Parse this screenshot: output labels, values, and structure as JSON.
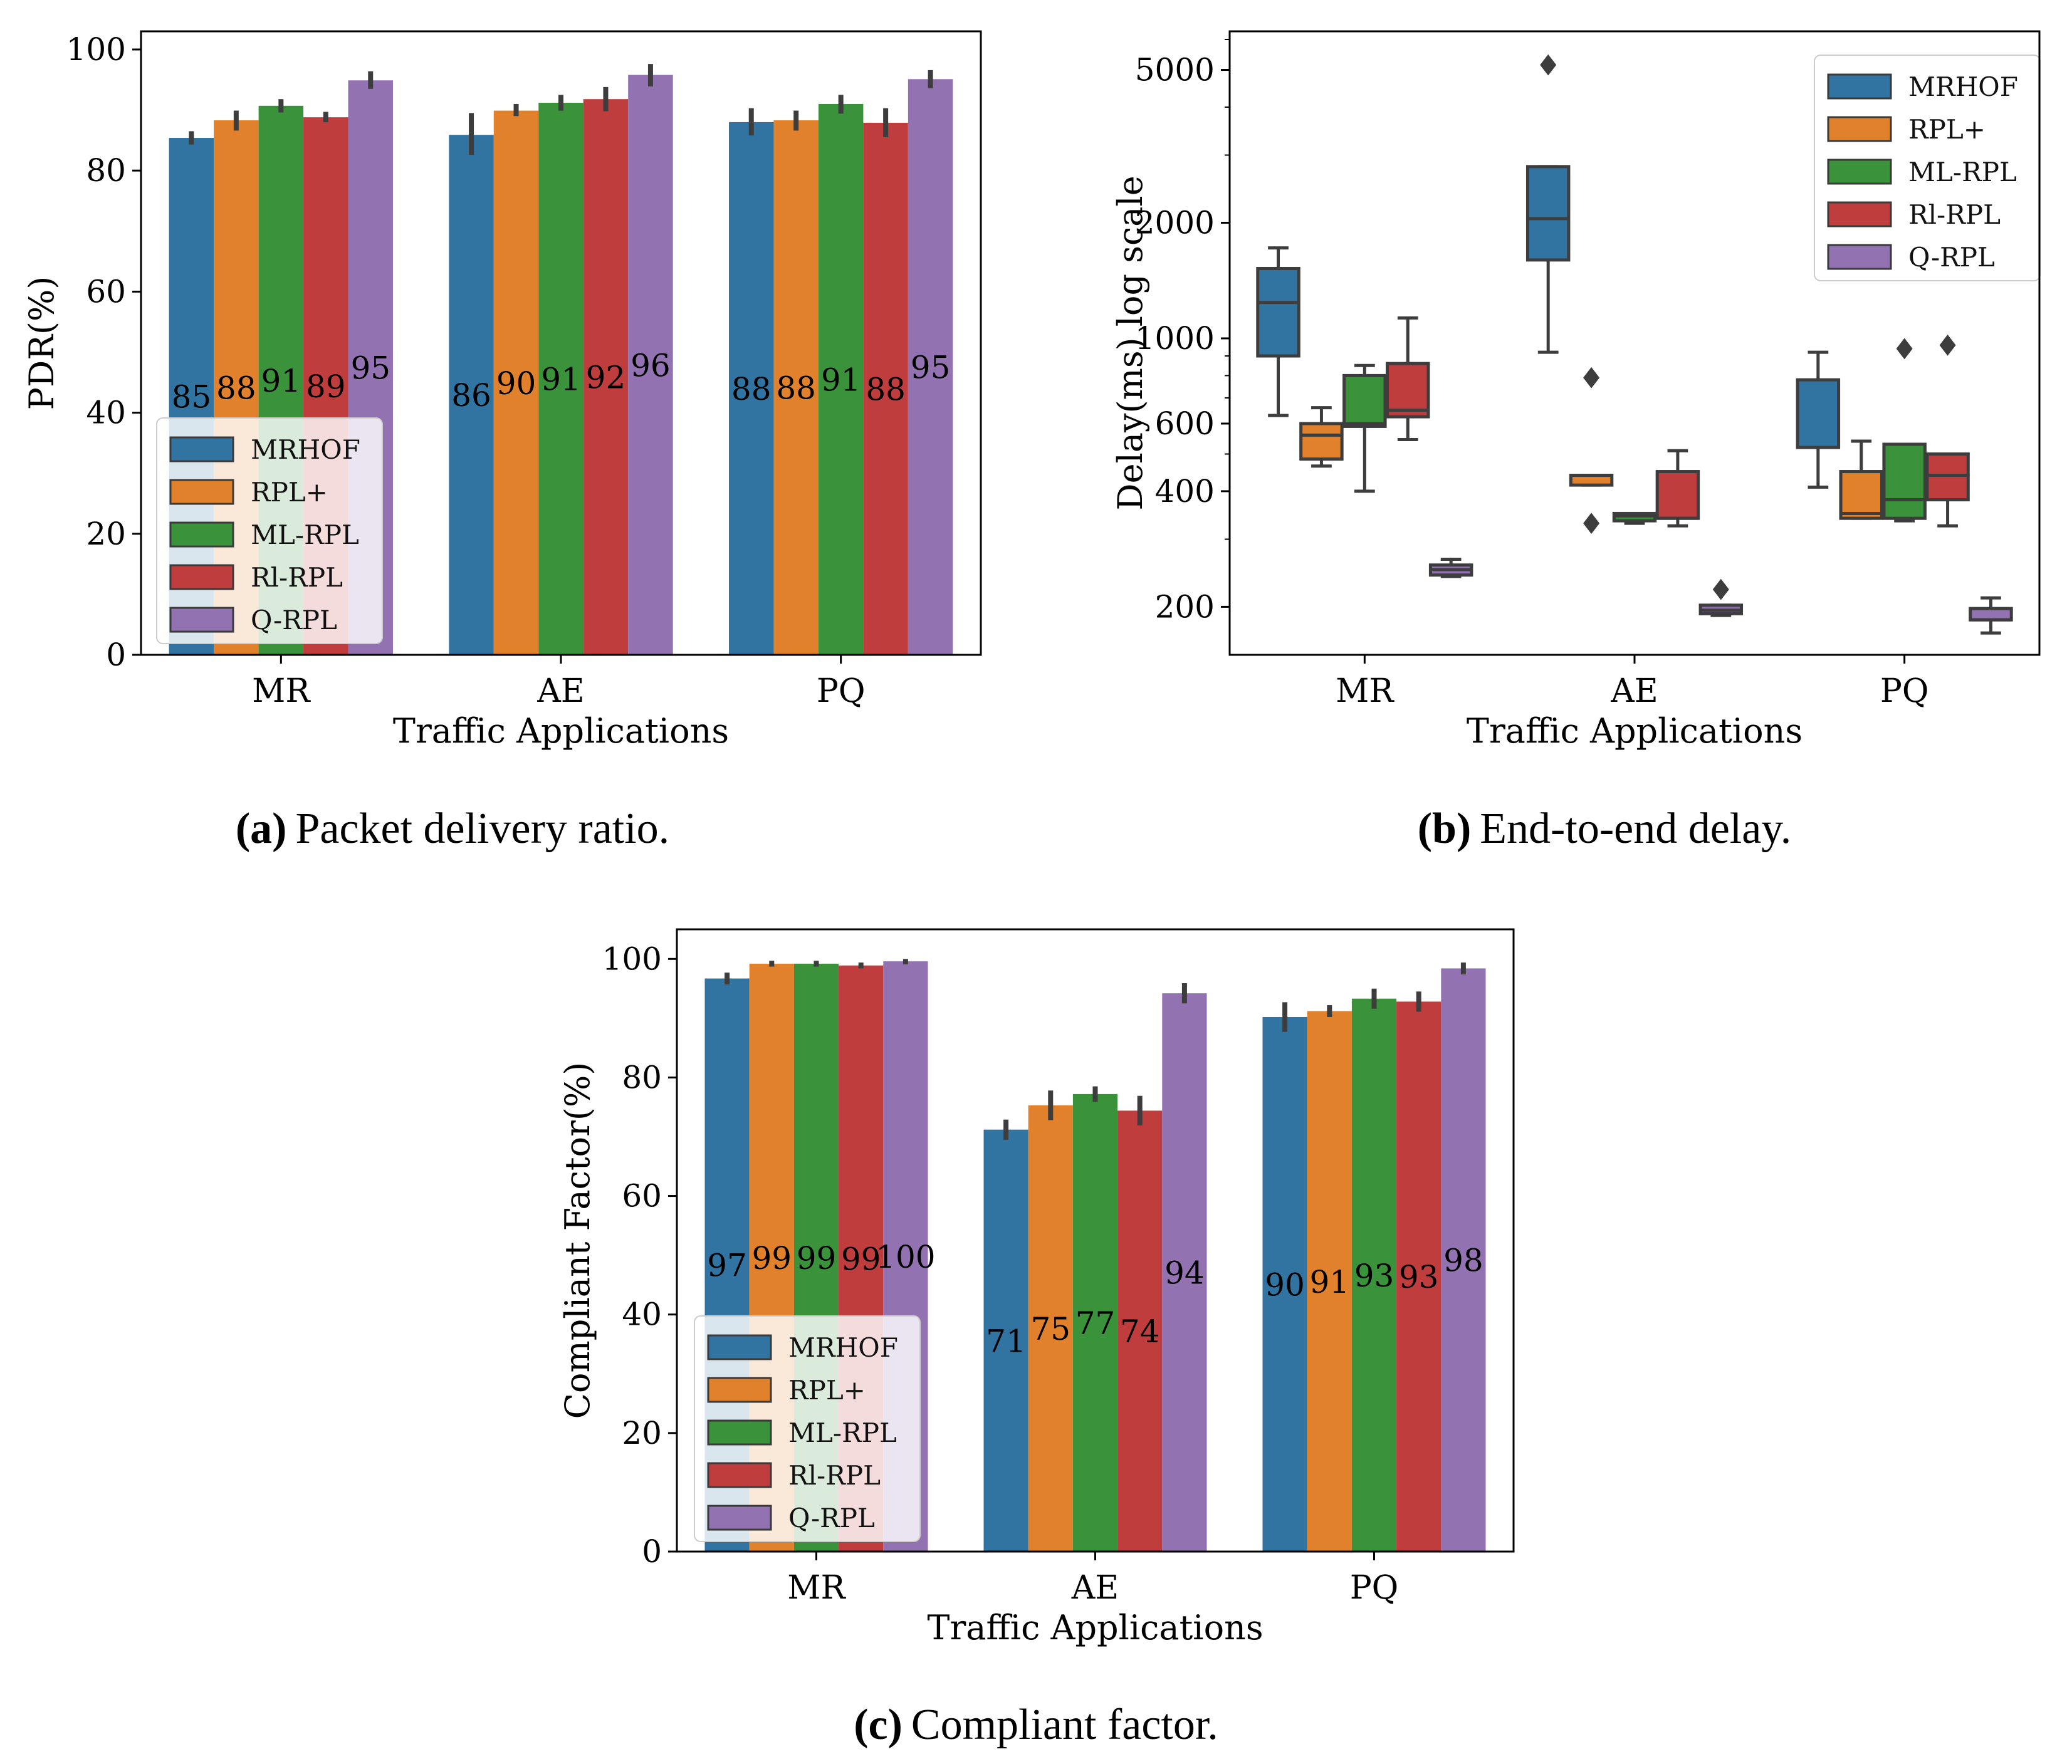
{
  "series_colors": {
    "MRHOF": "#3274a1",
    "RPL+": "#e1812c",
    "ML-RPL": "#3a923a",
    "Rl-RPL": "#c03d3e",
    "Q-RPL": "#9372b2"
  },
  "chart_data": [
    {
      "type": "bar",
      "caption": {
        "letter": "(a)",
        "text": "Packet delivery ratio."
      },
      "categories": [
        "MR",
        "AE",
        "PQ"
      ],
      "xlabel": "Traffic Applications",
      "ylabel": "PDR(%)",
      "ylim": [
        0,
        103
      ],
      "yticks": [
        0,
        20,
        40,
        60,
        80,
        100
      ],
      "legend": {
        "position": "lower-left",
        "entries": [
          "MRHOF",
          "RPL+",
          "ML-RPL",
          "Rl-RPL",
          "Q-RPL"
        ]
      },
      "series": [
        {
          "name": "MRHOF",
          "values": [
            85.4,
            85.9,
            88.0
          ],
          "errors": [
            [
              84.3,
              86.5
            ],
            [
              82.6,
              89.5
            ],
            [
              85.8,
              90.3
            ]
          ],
          "labels": [
            "85",
            "86",
            "88"
          ]
        },
        {
          "name": "RPL+",
          "values": [
            88.3,
            89.9,
            88.3
          ],
          "errors": [
            [
              86.6,
              89.9
            ],
            [
              89.0,
              91.0
            ],
            [
              86.6,
              89.9
            ]
          ],
          "labels": [
            "88",
            "90",
            "88"
          ]
        },
        {
          "name": "ML-RPL",
          "values": [
            90.7,
            91.2,
            91.0
          ],
          "errors": [
            [
              89.6,
              91.8
            ],
            [
              89.9,
              92.5
            ],
            [
              89.4,
              92.5
            ]
          ],
          "labels": [
            "91",
            "91",
            "91"
          ]
        },
        {
          "name": "Rl-RPL",
          "values": [
            88.8,
            91.8,
            87.9
          ],
          "errors": [
            [
              88.0,
              89.7
            ],
            [
              89.8,
              93.8
            ],
            [
              85.5,
              90.3
            ]
          ],
          "labels": [
            "89",
            "92",
            "88"
          ]
        },
        {
          "name": "Q-RPL",
          "values": [
            94.9,
            95.8,
            95.1
          ],
          "errors": [
            [
              93.5,
              96.4
            ],
            [
              93.9,
              97.6
            ],
            [
              93.6,
              96.6
            ]
          ],
          "labels": [
            "95",
            "96",
            "95"
          ]
        }
      ]
    },
    {
      "type": "box",
      "caption": {
        "letter": "(b)",
        "text": "End-to-end delay."
      },
      "categories": [
        "MR",
        "AE",
        "PQ"
      ],
      "xlabel": "Traffic Applications",
      "ylabel": "Delay(ms) log scale",
      "scale": "log",
      "ylim": [
        150,
        6300
      ],
      "ytick_labels": [
        200,
        400,
        600,
        1000,
        2000,
        5000
      ],
      "minor_ticks": [
        300,
        500,
        700,
        800,
        900,
        3000,
        4000,
        6000
      ],
      "legend": {
        "position": "top-right",
        "entries": [
          "MRHOF",
          "RPL+",
          "ML-RPL",
          "Rl-RPL",
          "Q-RPL"
        ]
      },
      "series": [
        {
          "name": "MRHOF",
          "boxes": [
            {
              "whislo": 630,
              "q1": 900,
              "med": 1240,
              "q3": 1520,
              "whishi": 1720,
              "fliers": []
            },
            {
              "whislo": 920,
              "q1": 1600,
              "med": 2050,
              "q3": 2800,
              "whishi": 2800,
              "fliers": [
                5150
              ]
            },
            {
              "whislo": 410,
              "q1": 520,
              "med": 520,
              "q3": 780,
              "whishi": 920,
              "fliers": []
            }
          ]
        },
        {
          "name": "RPL+",
          "boxes": [
            {
              "whislo": 465,
              "q1": 485,
              "med": 560,
              "q3": 600,
              "whishi": 660,
              "fliers": []
            },
            {
              "whislo": 415,
              "q1": 415,
              "med": 440,
              "q3": 440,
              "whishi": 440,
              "fliers": [
                330,
                790
              ]
            },
            {
              "whislo": 340,
              "q1": 340,
              "med": 350,
              "q3": 450,
              "whishi": 540,
              "fliers": []
            }
          ]
        },
        {
          "name": "ML-RPL",
          "boxes": [
            {
              "whislo": 400,
              "q1": 590,
              "med": 600,
              "q3": 800,
              "whishi": 850,
              "fliers": []
            },
            {
              "whislo": 330,
              "q1": 335,
              "med": 345,
              "q3": 350,
              "whishi": 350,
              "fliers": []
            },
            {
              "whislo": 335,
              "q1": 340,
              "med": 380,
              "q3": 530,
              "whishi": 530,
              "fliers": [
                940
              ]
            }
          ]
        },
        {
          "name": "Rl-RPL",
          "boxes": [
            {
              "whislo": 545,
              "q1": 625,
              "med": 650,
              "q3": 860,
              "whishi": 1130,
              "fliers": []
            },
            {
              "whislo": 325,
              "q1": 340,
              "med": 340,
              "q3": 450,
              "whishi": 510,
              "fliers": []
            },
            {
              "whislo": 325,
              "q1": 380,
              "med": 440,
              "q3": 500,
              "whishi": 500,
              "fliers": [
                960
              ]
            }
          ]
        },
        {
          "name": "Q-RPL",
          "boxes": [
            {
              "whislo": 240,
              "q1": 242,
              "med": 250,
              "q3": 257,
              "whishi": 266,
              "fliers": []
            },
            {
              "whislo": 190,
              "q1": 192,
              "med": 196,
              "q3": 202,
              "whishi": 202,
              "fliers": [
                222
              ]
            },
            {
              "whislo": 171,
              "q1": 185,
              "med": 185,
              "q3": 198,
              "whishi": 211,
              "fliers": []
            }
          ]
        }
      ]
    },
    {
      "type": "bar",
      "caption": {
        "letter": "(c)",
        "text": "Compliant factor."
      },
      "categories": [
        "MR",
        "AE",
        "PQ"
      ],
      "xlabel": "Traffic Applications",
      "ylabel": "Compliant Factor(%)",
      "ylim": [
        0,
        105
      ],
      "yticks": [
        0,
        20,
        40,
        60,
        80,
        100
      ],
      "legend": {
        "position": "lower-left",
        "entries": [
          "MRHOF",
          "RPL+",
          "ML-RPL",
          "Rl-RPL",
          "Q-RPL"
        ]
      },
      "series": [
        {
          "name": "MRHOF",
          "values": [
            96.7,
            71.2,
            90.2
          ],
          "errors": [
            [
              95.7,
              97.7
            ],
            [
              69.5,
              72.9
            ],
            [
              87.7,
              92.7
            ]
          ],
          "labels": [
            "97",
            "71",
            "90"
          ]
        },
        {
          "name": "RPL+",
          "values": [
            99.2,
            75.3,
            91.2
          ],
          "errors": [
            [
              98.7,
              99.7
            ],
            [
              72.8,
              77.8
            ],
            [
              90.2,
              92.2
            ]
          ],
          "labels": [
            "99",
            "75",
            "91"
          ]
        },
        {
          "name": "ML-RPL",
          "values": [
            99.2,
            77.2,
            93.3
          ],
          "errors": [
            [
              98.7,
              99.7
            ],
            [
              75.9,
              78.5
            ],
            [
              91.6,
              95.0
            ]
          ],
          "labels": [
            "99",
            "77",
            "93"
          ]
        },
        {
          "name": "Rl-RPL",
          "values": [
            98.9,
            74.4,
            92.8
          ],
          "errors": [
            [
              98.4,
              99.4
            ],
            [
              71.9,
              76.9
            ],
            [
              91.1,
              94.5
            ]
          ],
          "labels": [
            "99",
            "74",
            "93"
          ]
        },
        {
          "name": "Q-RPL",
          "values": [
            99.6,
            94.2,
            98.4
          ],
          "errors": [
            [
              99.1,
              100.0
            ],
            [
              92.5,
              95.9
            ],
            [
              97.4,
              99.4
            ]
          ],
          "labels": [
            "100",
            "94",
            "98"
          ]
        }
      ]
    }
  ]
}
